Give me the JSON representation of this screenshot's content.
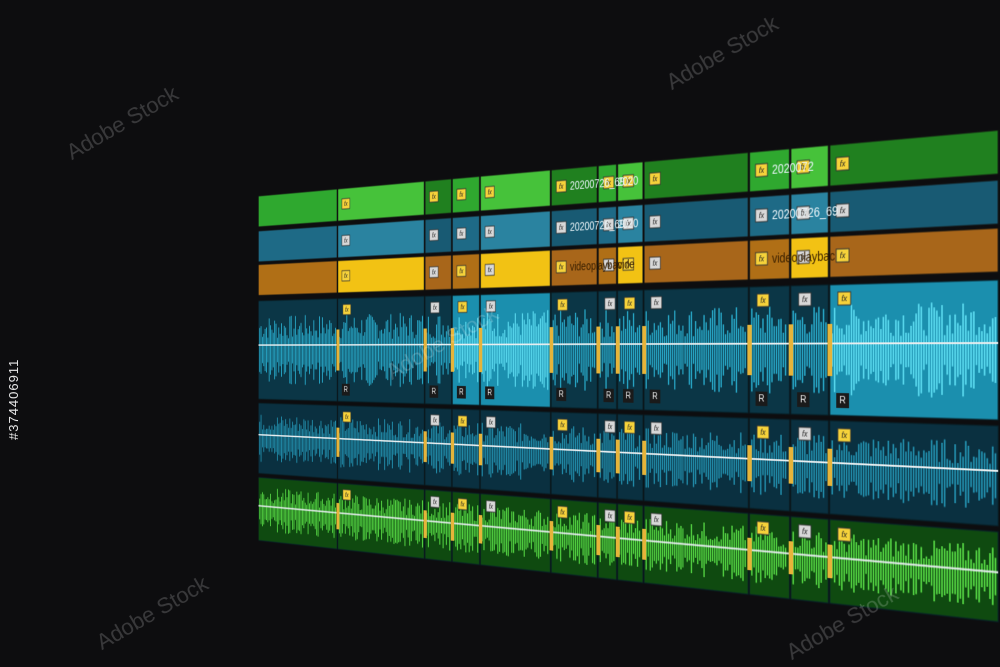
{
  "timeline": {
    "video_tracks": [
      {
        "clips": [
          "20200726_69",
          "2020",
          "2020072"
        ]
      },
      {
        "clips": [
          "20200726_69",
          "2020",
          "20200726_69"
        ]
      },
      {
        "clips": [
          "videoplaybac",
          "vide",
          "videoplaybac"
        ]
      }
    ],
    "badges": {
      "fx": "fx",
      "r": "R"
    }
  },
  "watermark": {
    "brand": "Adobe Stock",
    "id": "#374406911"
  }
}
